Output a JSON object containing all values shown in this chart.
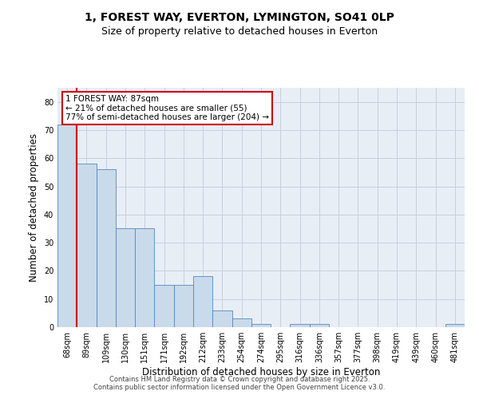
{
  "title_line1": "1, FOREST WAY, EVERTON, LYMINGTON, SO41 0LP",
  "title_line2": "Size of property relative to detached houses in Everton",
  "xlabel": "Distribution of detached houses by size in Everton",
  "ylabel": "Number of detached properties",
  "categories": [
    "68sqm",
    "89sqm",
    "109sqm",
    "130sqm",
    "151sqm",
    "171sqm",
    "192sqm",
    "212sqm",
    "233sqm",
    "254sqm",
    "274sqm",
    "295sqm",
    "316sqm",
    "336sqm",
    "357sqm",
    "377sqm",
    "398sqm",
    "419sqm",
    "439sqm",
    "460sqm",
    "481sqm"
  ],
  "values": [
    72,
    58,
    56,
    35,
    35,
    15,
    15,
    18,
    6,
    3,
    1,
    0,
    1,
    1,
    0,
    0,
    0,
    0,
    0,
    0,
    1
  ],
  "bar_color": "#c9daea",
  "bar_edge_color": "#5588bb",
  "highlight_color": "#cc0000",
  "annotation_text": "1 FOREST WAY: 87sqm\n← 21% of detached houses are smaller (55)\n77% of semi-detached houses are larger (204) →",
  "annotation_box_color": "#cc0000",
  "ylim": [
    0,
    85
  ],
  "yticks": [
    0,
    10,
    20,
    30,
    40,
    50,
    60,
    70,
    80
  ],
  "grid_color": "#c8d0dc",
  "bg_color": "#e8eef6",
  "footer_text": "Contains HM Land Registry data © Crown copyright and database right 2025.\nContains public sector information licensed under the Open Government Licence v3.0.",
  "title_fontsize": 10,
  "subtitle_fontsize": 9,
  "axis_label_fontsize": 8.5,
  "tick_fontsize": 7,
  "annotation_fontsize": 7.5,
  "footer_fontsize": 6
}
